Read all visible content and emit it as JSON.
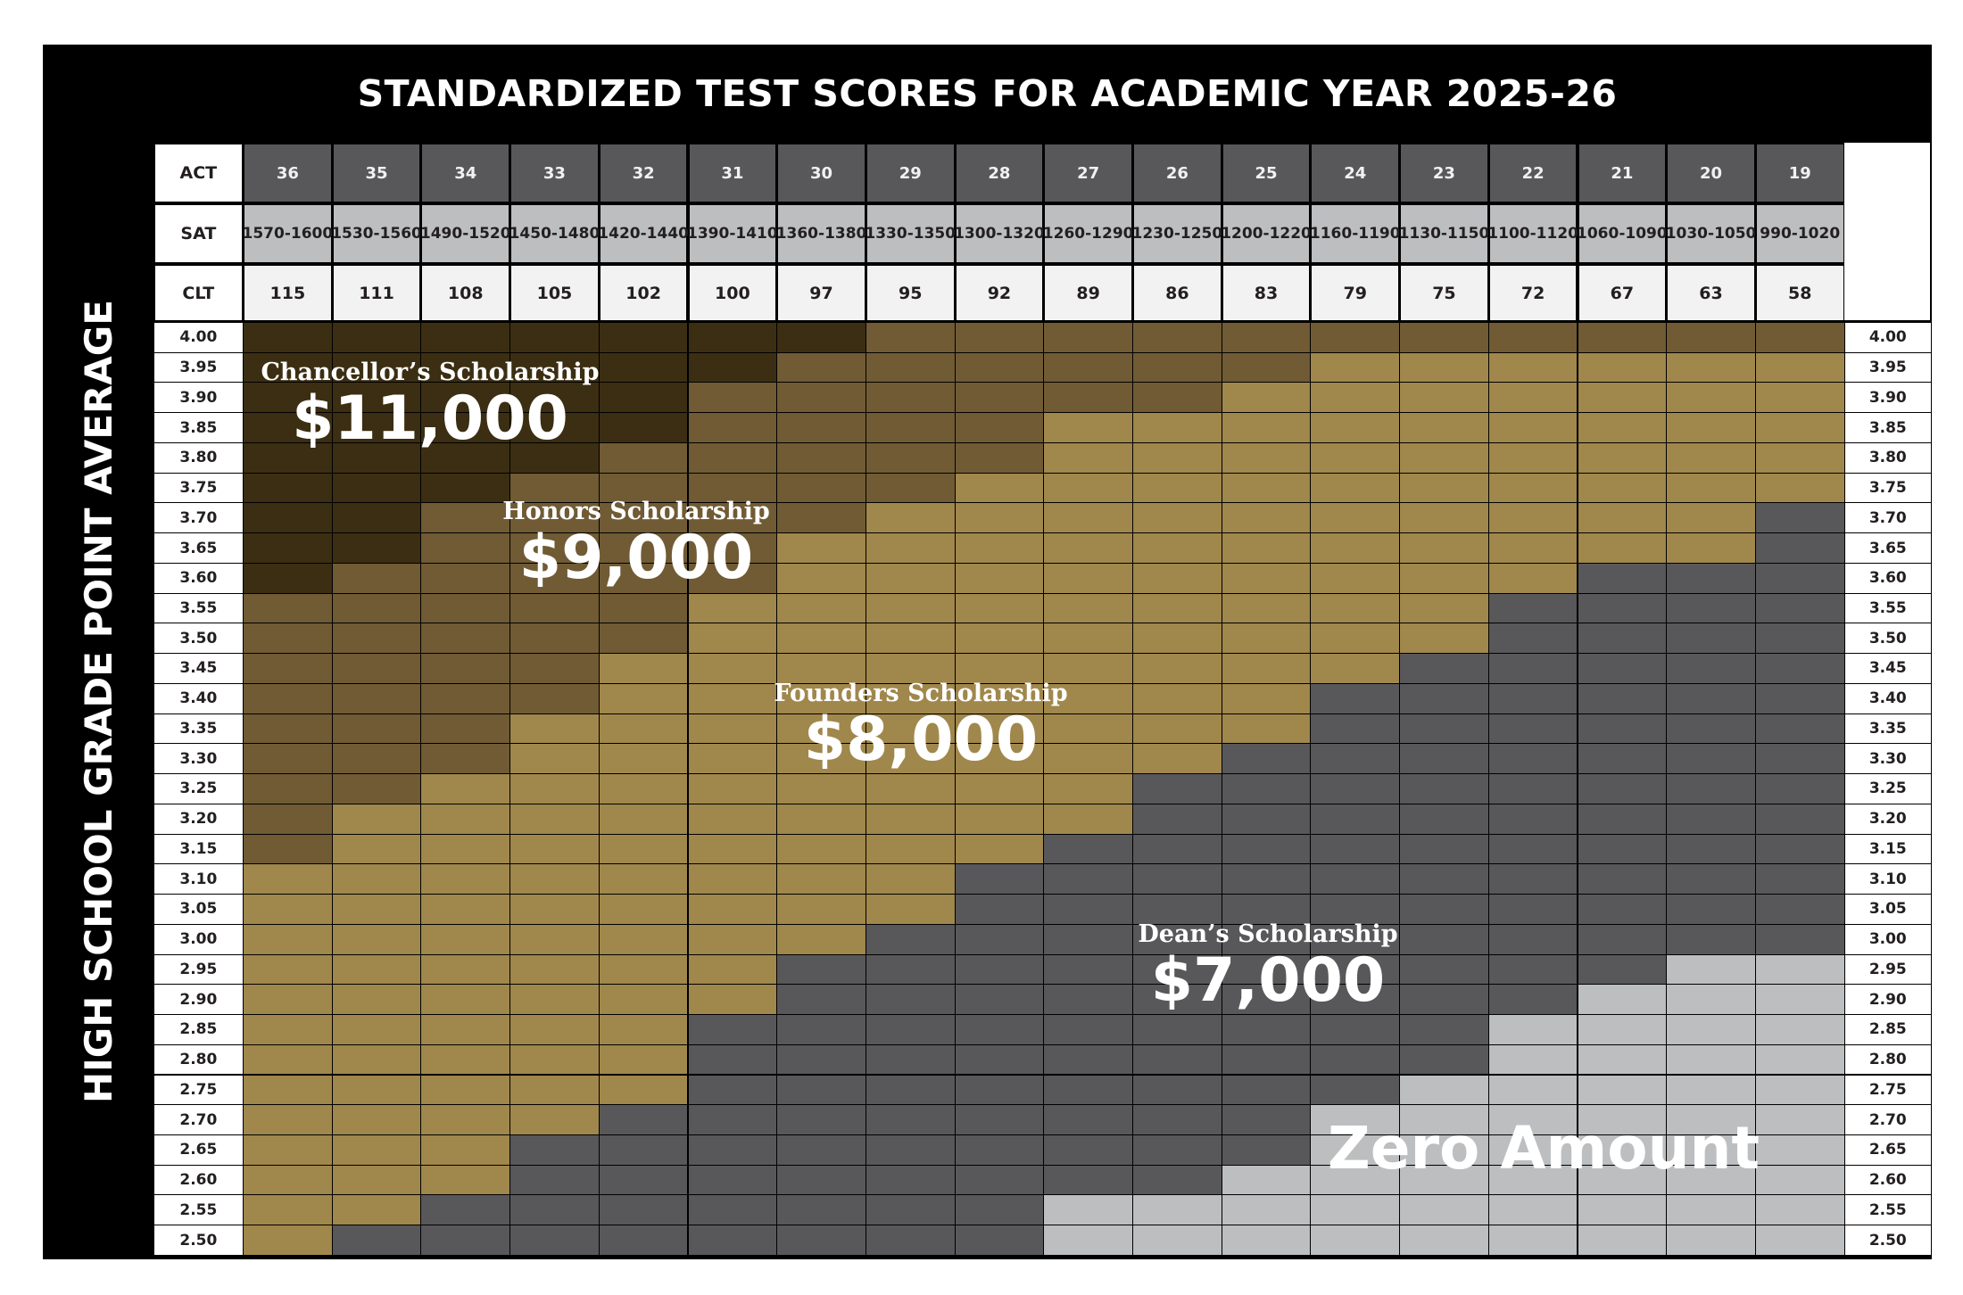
{
  "title": "STANDARDIZED TEST SCORES FOR ACADEMIC YEAR 2025-26",
  "y_axis_label": "HIGH SCHOOL GRADE POINT AVERAGE",
  "header_labels": {
    "act": "ACT",
    "sat": "SAT",
    "clt": "CLT"
  },
  "colors": {
    "chancellor": "#3b2e12",
    "honors": "#705b35",
    "founders": "#a0874c",
    "dean": "#58585a",
    "zero": "#bcbec0"
  },
  "tiers": {
    "chancellor": {
      "name": "Chancellor’s Scholarship",
      "amount": "$11,000"
    },
    "honors": {
      "name": "Honors Scholarship",
      "amount": "$9,000"
    },
    "founders": {
      "name": "Founders Scholarship",
      "amount": "$8,000"
    },
    "dean": {
      "name": "Dean’s Scholarship",
      "amount": "$7,000"
    },
    "zero": {
      "name": "Zero Amount"
    }
  },
  "chart_data": {
    "type": "heatmap",
    "title": "STANDARDIZED TEST SCORES FOR ACADEMIC YEAR 2025-26",
    "ylabel": "HIGH SCHOOL GRADE POINT AVERAGE",
    "columns": {
      "act": [
        "36",
        "35",
        "34",
        "33",
        "32",
        "31",
        "30",
        "29",
        "28",
        "27",
        "26",
        "25",
        "24",
        "23",
        "22",
        "21",
        "20",
        "19"
      ],
      "sat": [
        [
          "1570-",
          "1600"
        ],
        [
          "1530-",
          "1560"
        ],
        [
          "1490-",
          "1520"
        ],
        [
          "1450-",
          "1480"
        ],
        [
          "1420-",
          "1440"
        ],
        [
          "1390-",
          "1410"
        ],
        [
          "1360-",
          "1380"
        ],
        [
          "1330-",
          "1350"
        ],
        [
          "1300-",
          "1320"
        ],
        [
          "1260-",
          "1290"
        ],
        [
          "1230-",
          "1250"
        ],
        [
          "1200-",
          "1220"
        ],
        [
          "1160-",
          "1190"
        ],
        [
          "1130-",
          "1150"
        ],
        [
          "1100-",
          "1120"
        ],
        [
          "1060-",
          "1090"
        ],
        [
          "1030-",
          "1050"
        ],
        [
          "990-",
          "1020"
        ]
      ],
      "clt": [
        "115",
        "111",
        "108",
        "105",
        "102",
        "100",
        "97",
        "95",
        "92",
        "89",
        "86",
        "83",
        "79",
        "75",
        "72",
        "67",
        "63",
        "58"
      ]
    },
    "gpa": [
      "4.00",
      "3.95",
      "3.90",
      "3.85",
      "3.80",
      "3.75",
      "3.70",
      "3.65",
      "3.60",
      "3.55",
      "3.50",
      "3.45",
      "3.40",
      "3.35",
      "3.30",
      "3.25",
      "3.20",
      "3.15",
      "3.10",
      "3.05",
      "3.00",
      "2.95",
      "2.90",
      "2.85",
      "2.80",
      "2.75",
      "2.70",
      "2.65",
      "2.60",
      "2.55",
      "2.50"
    ],
    "tier_codes": {
      "C": "chancellor",
      "H": "honors",
      "F": "founders",
      "D": "dean",
      "Z": "zero"
    },
    "grid": [
      "CCCCCCCHHHHHHHHHHH",
      "CCCCCCHHHHHHFFFFFF",
      "CCCCCHHHHHHFFFFFFF",
      "CCCCCHHHHFFFFFFFFF",
      "CCCCHHHHHFFFFFFFFF",
      "CCCHHHHHFFFFFFFFFF",
      "CCHHHHHFFFFFFFFFFD",
      "CCHHHHFFFFFFFFFFFD",
      "CHHHHHFFFFFFFFFDDD",
      "HHHHHFFFFFFFFFDDDD",
      "HHHHHFFFFFFFFFDDDD",
      "HHHHFFFFFFFFFDDDDD",
      "HHHHFFFFFFFFDDDDDD",
      "HHHFFFFFFFFFDDDDDD",
      "HHHFFFFFFFFDDDDDDD",
      "HHFFFFFFFFDDDDDDDD",
      "HFFFFFFFFFDDDDDDDD",
      "HFFFFFFFFDDDDDDDDD",
      "FFFFFFFFDDDDDDDDDD",
      "FFFFFFFFDDDDDDDDDD",
      "FFFFFFFDDDDDDDDDDD",
      "FFFFFFDDDDDDDDDDZZ",
      "FFFFFFDDDDDDDDDZZZ",
      "FFFFFDDDDDDDDDZZZZ",
      "FFFFFDDDDDDDDDZZZZ",
      "FFFFFDDDDDDDDZZZZZ",
      "FFFFDDDDDDDDZZZZZZ",
      "FFFDDDDDDDDDZZZZZZ",
      "FFFDDDDDDDDZZZZZZZ",
      "FFDDDDDDDZZZZZZZZZ",
      "FDDDDDDDDZZZZZZZZZ"
    ]
  }
}
